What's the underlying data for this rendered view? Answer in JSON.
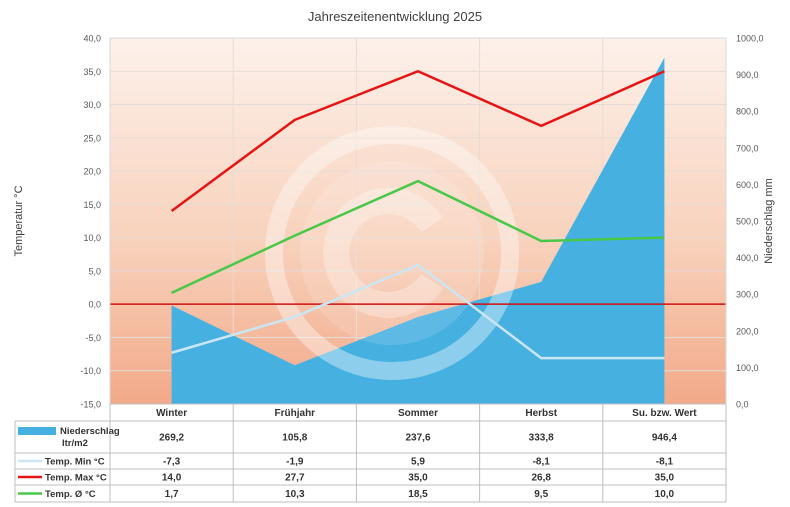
{
  "chart_data": {
    "type": "line",
    "title": "Jahreszeitenentwicklung 2025",
    "ylabel": "Temperatur °C",
    "y2label": "Niederschlag mm",
    "ylim": [
      -15,
      40
    ],
    "y2lim": [
      0,
      1000
    ],
    "y_ticks": [
      "40,0",
      "35,0",
      "30,0",
      "25,0",
      "20,0",
      "15,0",
      "10,0",
      "5,0",
      "0,0",
      "-5,0",
      "-10,0",
      "-15,0"
    ],
    "y2_ticks": [
      "1000,0",
      "900,0",
      "800,0",
      "700,0",
      "600,0",
      "500,0",
      "400,0",
      "300,0",
      "200,0",
      "100,0",
      "0,0"
    ],
    "categories": [
      "Winter",
      "Frühjahr",
      "Sommer",
      "Herbst",
      "Su. bzw. Wert"
    ],
    "series": [
      {
        "name": "Niederschlag ltr/m2",
        "label_line1": "Niederschlag",
        "label_line2": "ltr/m2",
        "type": "area",
        "axis": "right",
        "color": "#46B0E1",
        "values": [
          269.2,
          105.8,
          237.6,
          333.8,
          946.4
        ],
        "value_labels": [
          "269,2",
          "105,8",
          "237,6",
          "333,8",
          "946,4"
        ]
      },
      {
        "name": "Temp. Min °C",
        "type": "line",
        "axis": "left",
        "color": "#CBE6F3",
        "values": [
          -7.3,
          -1.9,
          5.9,
          -8.1,
          -8.1
        ],
        "value_labels": [
          "-7,3",
          "-1,9",
          "5,9",
          "-8,1",
          "-8,1"
        ]
      },
      {
        "name": "Temp. Max °C",
        "type": "line",
        "axis": "left",
        "color": "#E81414",
        "values": [
          14.0,
          27.7,
          35.0,
          26.8,
          35.0
        ],
        "value_labels": [
          "14,0",
          "27,7",
          "35,0",
          "26,8",
          "35,0"
        ]
      },
      {
        "name": "Temp. Ø °C",
        "type": "line",
        "axis": "left",
        "color": "#47C847",
        "values": [
          1.7,
          10.3,
          18.5,
          9.5,
          10.0
        ],
        "value_labels": [
          "1,7",
          "10,3",
          "18,5",
          "9,5",
          "10,0"
        ]
      }
    ],
    "zero_line_color": "#D01010",
    "grid": true,
    "legend": "table-below"
  }
}
